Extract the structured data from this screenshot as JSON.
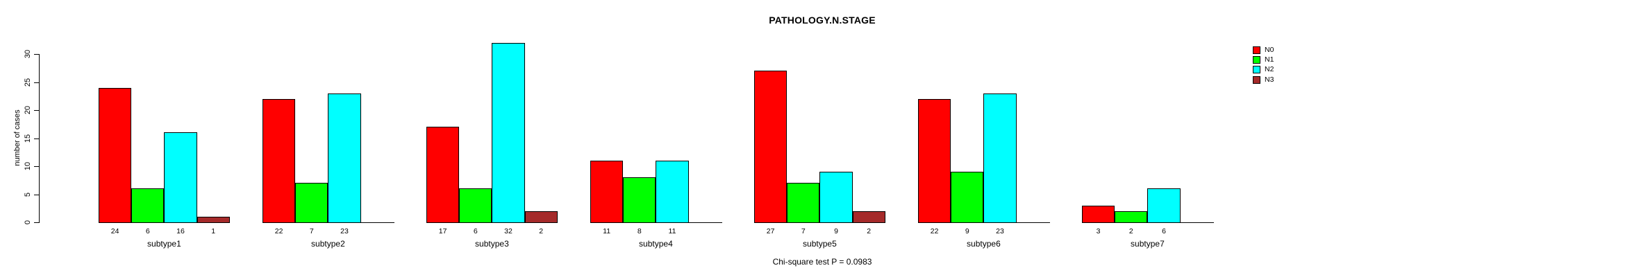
{
  "chart_data": {
    "type": "bar",
    "title": "PATHOLOGY.N.STAGE",
    "subtitle": "Chi-square test P = 0.0983",
    "ylabel": "number of cases",
    "xlabel": "",
    "ylim": [
      0,
      30
    ],
    "yticks": [
      0,
      5,
      10,
      15,
      20,
      25,
      30
    ],
    "grid": false,
    "legend_position": "topright",
    "bar_value_labels_shown": true,
    "categories": [
      "subtype1",
      "subtype2",
      "subtype3",
      "subtype4",
      "subtype5",
      "subtype6",
      "subtype7"
    ],
    "series": [
      {
        "name": "N0",
        "color": "#FF0000",
        "values": [
          24,
          22,
          17,
          11,
          27,
          22,
          3
        ]
      },
      {
        "name": "N1",
        "color": "#00FF00",
        "values": [
          6,
          7,
          6,
          8,
          7,
          9,
          2
        ]
      },
      {
        "name": "N2",
        "color": "#00FFFF",
        "values": [
          16,
          23,
          32,
          11,
          9,
          23,
          6
        ]
      },
      {
        "name": "N3",
        "color": "#A52A2A",
        "values": [
          1,
          0,
          2,
          0,
          2,
          0,
          0
        ]
      }
    ],
    "colors": {
      "axis": "#000000",
      "text": "#000000",
      "background": "#FFFFFF"
    }
  }
}
